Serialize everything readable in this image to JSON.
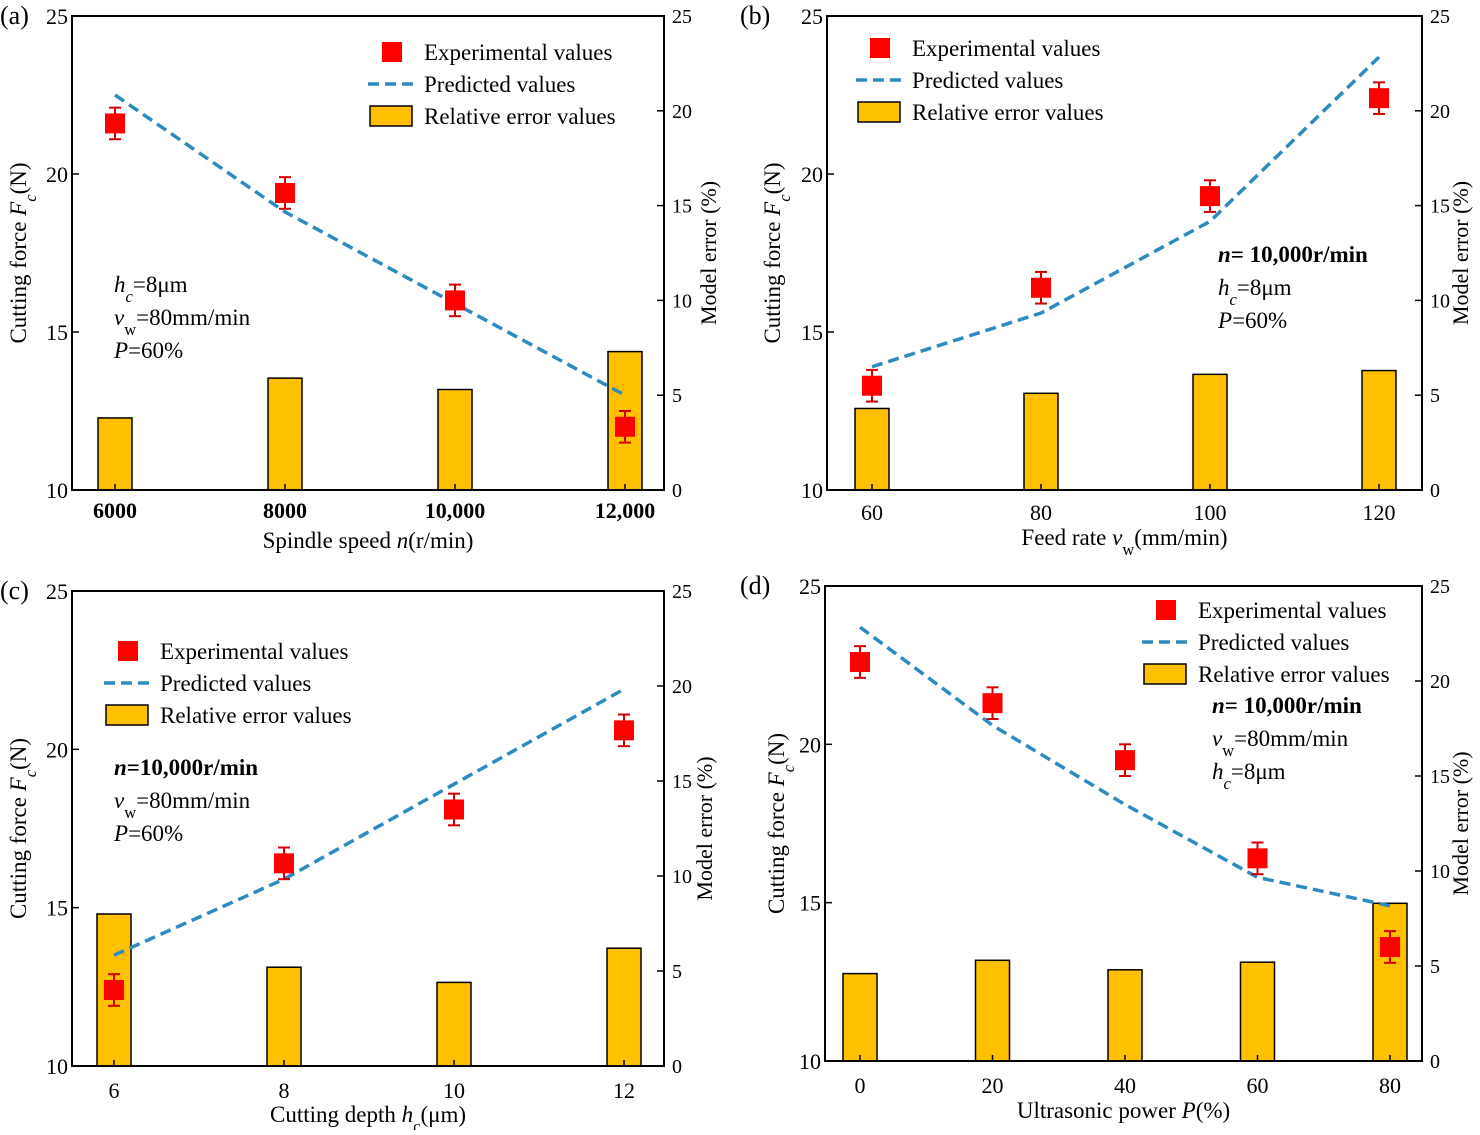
{
  "colors": {
    "bar_fill": "#FFC000",
    "bar_stroke": "#000000",
    "exp_fill": "#FF0000",
    "exp_error": "#D00000",
    "pred_line": "#2E8BC0",
    "axis": "#000000"
  },
  "chart_data": [
    {
      "panel_label": "(a)",
      "type": "bar+line+scatter",
      "xlabel": "Spindle speed n(r/min)",
      "ylabel_left": "Cutting force Fc(N)",
      "ylabel_right": "Model error (%)",
      "categories": [
        "6000",
        "8000",
        "10,000",
        "12,000"
      ],
      "ylim_left": [
        10,
        25
      ],
      "yticks_left": [
        10,
        15,
        20,
        25
      ],
      "ylim_right": [
        0,
        25
      ],
      "yticks_right": [
        0,
        5,
        10,
        15,
        20,
        25
      ],
      "legend": {
        "position": "top-right",
        "entries": [
          "Experimental values",
          "Predicted values",
          "Relative error values"
        ]
      },
      "annotations": [
        "hc=8μm",
        "vw=80mm/min",
        "P=60%"
      ],
      "series": [
        {
          "name": "Experimental values",
          "kind": "scatter",
          "axis": "left",
          "values": [
            21.6,
            19.4,
            16.0,
            12.0
          ],
          "error": [
            0.5,
            0.5,
            0.5,
            0.5
          ]
        },
        {
          "name": "Predicted values",
          "kind": "line",
          "axis": "left",
          "values": [
            22.5,
            18.8,
            15.9,
            13.0
          ]
        },
        {
          "name": "Relative error values",
          "kind": "bar",
          "axis": "right",
          "values": [
            3.8,
            5.9,
            5.3,
            7.3
          ]
        }
      ]
    },
    {
      "panel_label": "(b)",
      "type": "bar+line+scatter",
      "xlabel": "Feed rate vw(mm/min)",
      "ylabel_left": "Cutting force Fc(N)",
      "ylabel_right": "Model error (%)",
      "categories": [
        "60",
        "80",
        "100",
        "120"
      ],
      "ylim_left": [
        10,
        25
      ],
      "yticks_left": [
        10,
        15,
        20,
        25
      ],
      "ylim_right": [
        0,
        25
      ],
      "yticks_right": [
        0,
        5,
        10,
        15,
        20,
        25
      ],
      "legend": {
        "position": "top-left",
        "entries": [
          "Experimental values",
          "Predicted values",
          "Relative error values"
        ]
      },
      "annotations": [
        "n= 10,000r/min",
        "hc=8μm",
        "P=60%"
      ],
      "series": [
        {
          "name": "Experimental values",
          "kind": "scatter",
          "axis": "left",
          "values": [
            13.3,
            16.4,
            19.3,
            22.4
          ],
          "error": [
            0.5,
            0.5,
            0.5,
            0.5
          ]
        },
        {
          "name": "Predicted values",
          "kind": "line",
          "axis": "left",
          "values": [
            13.9,
            15.6,
            18.5,
            23.7
          ]
        },
        {
          "name": "Relative error values",
          "kind": "bar",
          "axis": "right",
          "values": [
            4.3,
            5.1,
            6.1,
            6.3
          ]
        }
      ]
    },
    {
      "panel_label": "(c)",
      "type": "bar+line+scatter",
      "xlabel": "Cutting depth hc(μm)",
      "ylabel_left": "Cutting force Fc(N)",
      "ylabel_right": "Model error (%)",
      "categories": [
        "6",
        "8",
        "10",
        "12"
      ],
      "ylim_left": [
        10,
        25
      ],
      "yticks_left": [
        10,
        15,
        20,
        25
      ],
      "ylim_right": [
        0,
        25
      ],
      "yticks_right": [
        0,
        5,
        10,
        15,
        20,
        25
      ],
      "legend": {
        "position": "top-left",
        "entries": [
          "Experimental values",
          "Predicted values",
          "Relative error values"
        ]
      },
      "annotations": [
        "n=10,000r/min",
        "vw=80mm/min",
        "P=60%"
      ],
      "series": [
        {
          "name": "Experimental values",
          "kind": "scatter",
          "axis": "left",
          "values": [
            12.4,
            16.4,
            18.1,
            20.6
          ],
          "error": [
            0.5,
            0.5,
            0.5,
            0.5
          ]
        },
        {
          "name": "Predicted values",
          "kind": "line",
          "axis": "left",
          "values": [
            13.5,
            15.9,
            18.9,
            21.9
          ]
        },
        {
          "name": "Relative error values",
          "kind": "bar",
          "axis": "right",
          "values": [
            8.0,
            5.2,
            4.4,
            6.2
          ]
        }
      ]
    },
    {
      "panel_label": "(d)",
      "type": "bar+line+scatter",
      "xlabel": "Ultrasonic power P(%)",
      "ylabel_left": "Cutting force Fc(N)",
      "ylabel_right": "Model error (%)",
      "categories": [
        "0",
        "20",
        "40",
        "60",
        "80"
      ],
      "ylim_left": [
        10,
        25
      ],
      "yticks_left": [
        10,
        15,
        20,
        25
      ],
      "ylim_right": [
        0,
        25
      ],
      "yticks_right": [
        0,
        5,
        10,
        15,
        20,
        25
      ],
      "legend": {
        "position": "top-right",
        "entries": [
          "Experimental values",
          "Predicted values",
          "Relative error values"
        ]
      },
      "annotations": [
        "n= 10,000r/min",
        "vw=80mm/min",
        "hc=8μm"
      ],
      "series": [
        {
          "name": "Experimental values",
          "kind": "scatter",
          "axis": "left",
          "values": [
            22.6,
            21.3,
            19.5,
            16.4,
            13.6
          ],
          "error": [
            0.5,
            0.5,
            0.5,
            0.5,
            0.5
          ]
        },
        {
          "name": "Predicted values",
          "kind": "line",
          "axis": "left",
          "values": [
            23.7,
            20.6,
            18.1,
            15.8,
            14.9
          ]
        },
        {
          "name": "Relative error values",
          "kind": "bar",
          "axis": "right",
          "values": [
            4.6,
            5.3,
            4.8,
            5.2,
            8.3
          ]
        }
      ]
    }
  ]
}
